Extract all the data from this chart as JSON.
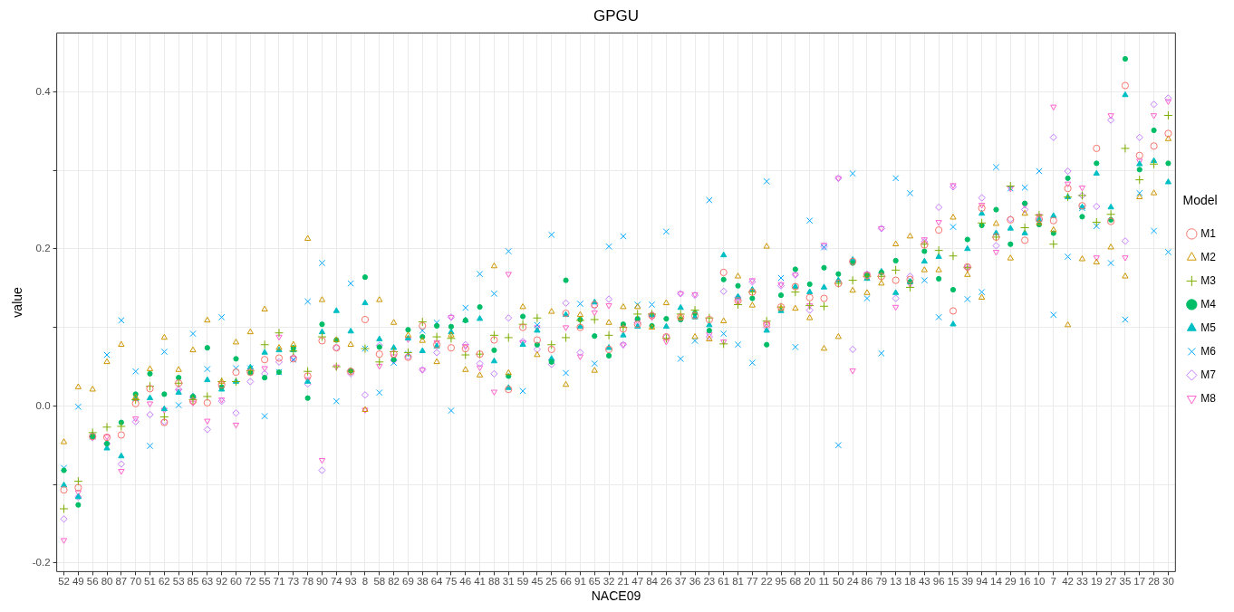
{
  "chart_data": {
    "type": "scatter",
    "title": "GPGU",
    "xlabel": "NACE09",
    "ylabel": "value",
    "legend_title": "Model",
    "legend": "right",
    "grid": true,
    "categories": [
      "52",
      "49",
      "56",
      "80",
      "87",
      "70",
      "51",
      "62",
      "53",
      "85",
      "63",
      "92",
      "60",
      "72",
      "55",
      "71",
      "73",
      "78",
      "90",
      "74",
      "93",
      "8",
      "58",
      "82",
      "69",
      "38",
      "64",
      "75",
      "46",
      "41",
      "88",
      "31",
      "59",
      "45",
      "25",
      "66",
      "91",
      "65",
      "32",
      "21",
      "47",
      "84",
      "26",
      "37",
      "36",
      "23",
      "61",
      "81",
      "77",
      "22",
      "95",
      "68",
      "20",
      "11",
      "50",
      "24",
      "86",
      "79",
      "13",
      "18",
      "43",
      "96",
      "15",
      "39",
      "94",
      "14",
      "29",
      "16",
      "10",
      "7",
      "42",
      "33",
      "19",
      "27",
      "35",
      "17",
      "28",
      "30"
    ],
    "ylim": [
      -0.211,
      0.475
    ],
    "yticks": [
      -0.2,
      {
        "value": -0.1,
        "label": null
      },
      {
        "value": 0,
        "label": "0.0"
      },
      {
        "value": 0.1,
        "label": null
      },
      0.2,
      {
        "value": 0.3,
        "label": null
      },
      0.4
    ],
    "series": [
      {
        "name": "M1",
        "color": "#f8766d",
        "marker": "circle",
        "values": [
          -0.107,
          -0.104,
          -0.039,
          -0.04,
          -0.037,
          0.003,
          0.022,
          -0.021,
          0.029,
          0.006,
          0.004,
          0.027,
          0.043,
          0.043,
          0.059,
          0.061,
          0.06,
          0.038,
          0.083,
          0.074,
          0.044,
          0.11,
          0.066,
          0.066,
          0.062,
          0.102,
          0.078,
          0.074,
          0.073,
          0.066,
          0.084,
          0.021,
          0.1,
          0.084,
          0.072,
          0.118,
          0.1,
          0.129,
          0.072,
          0.098,
          0.104,
          0.115,
          0.088,
          0.113,
          0.115,
          0.11,
          0.17,
          0.134,
          0.145,
          0.104,
          0.126,
          0.152,
          0.138,
          0.137,
          0.156,
          0.184,
          0.166,
          0.165,
          0.16,
          0.161,
          0.205,
          0.224,
          0.121,
          0.177,
          0.252,
          0.215,
          0.237,
          0.211,
          0.238,
          0.236,
          0.277,
          0.255,
          0.328,
          0.235,
          0.408,
          0.319,
          0.331,
          0.347
        ]
      },
      {
        "name": "M2",
        "color": "#cd9600",
        "marker": "triangle",
        "values": [
          -0.046,
          0.024,
          0.021,
          0.056,
          0.078,
          0.011,
          0.047,
          0.087,
          0.046,
          0.071,
          0.109,
          0.031,
          0.081,
          0.094,
          0.123,
          0.074,
          0.078,
          0.213,
          0.135,
          0.084,
          0.078,
          -0.005,
          0.135,
          0.106,
          0.09,
          0.083,
          0.056,
          0.09,
          0.046,
          0.039,
          0.178,
          0.042,
          0.126,
          0.065,
          0.12,
          0.027,
          0.116,
          0.045,
          0.106,
          0.126,
          0.126,
          0.1,
          0.131,
          0.113,
          0.088,
          0.085,
          0.108,
          0.165,
          0.128,
          0.203,
          0.124,
          0.124,
          0.112,
          0.073,
          0.088,
          0.147,
          0.144,
          0.156,
          0.206,
          0.216,
          0.173,
          0.173,
          0.24,
          0.167,
          0.138,
          0.232,
          0.188,
          0.245,
          0.233,
          0.224,
          0.103,
          0.187,
          0.183,
          0.202,
          0.165,
          0.266,
          0.271,
          0.34
        ]
      },
      {
        "name": "M3",
        "color": "#7cae00",
        "marker": "cross",
        "values": [
          -0.131,
          -0.096,
          -0.034,
          -0.027,
          -0.026,
          0.008,
          0.025,
          -0.014,
          0.029,
          0.008,
          0.012,
          0.031,
          0.031,
          0.045,
          0.078,
          0.093,
          0.07,
          0.044,
          0.088,
          0.05,
          0.044,
          0.073,
          0.056,
          0.069,
          0.068,
          0.107,
          0.088,
          0.086,
          0.065,
          0.066,
          0.09,
          0.087,
          0.104,
          0.112,
          0.078,
          0.087,
          0.109,
          0.11,
          0.09,
          0.1,
          0.117,
          0.117,
          0.086,
          0.117,
          0.122,
          0.112,
          0.079,
          0.129,
          0.145,
          0.108,
          0.126,
          0.145,
          0.128,
          0.127,
          0.156,
          0.16,
          0.165,
          0.165,
          0.173,
          0.151,
          0.206,
          0.198,
          0.191,
          0.176,
          0.233,
          0.215,
          0.28,
          0.227,
          0.243,
          0.206,
          0.266,
          0.268,
          0.234,
          0.244,
          0.328,
          0.288,
          0.308,
          0.37
        ]
      },
      {
        "name": "M4",
        "color": "#00be67",
        "marker": "circle-filled",
        "values": [
          -0.082,
          -0.126,
          -0.039,
          -0.048,
          -0.021,
          0.015,
          0.041,
          0.015,
          0.036,
          0.012,
          0.074,
          0.024,
          0.06,
          0.042,
          0.036,
          0.043,
          0.074,
          0.01,
          0.104,
          0.084,
          0.045,
          0.164,
          0.075,
          0.059,
          0.097,
          0.088,
          0.102,
          0.101,
          0.109,
          0.126,
          0.071,
          0.038,
          0.114,
          0.078,
          0.056,
          0.16,
          0.11,
          0.089,
          0.064,
          0.104,
          0.111,
          0.102,
          0.111,
          0.11,
          0.118,
          0.096,
          0.161,
          0.153,
          0.137,
          0.078,
          0.141,
          0.174,
          0.155,
          0.176,
          0.168,
          0.182,
          0.167,
          0.17,
          0.185,
          0.158,
          0.197,
          0.162,
          0.148,
          0.212,
          0.23,
          0.25,
          0.206,
          0.258,
          0.231,
          0.22,
          0.29,
          0.241,
          0.309,
          0.237,
          0.442,
          0.301,
          0.351,
          0.309
        ]
      },
      {
        "name": "M5",
        "color": "#00bfc4",
        "marker": "triangle-filled",
        "values": [
          -0.101,
          -0.116,
          -0.037,
          -0.054,
          -0.064,
          0.009,
          0.01,
          -0.004,
          0.017,
          0.012,
          0.033,
          0.021,
          0.031,
          0.049,
          0.068,
          0.071,
          0.071,
          0.031,
          0.094,
          0.121,
          0.095,
          0.131,
          0.085,
          0.074,
          0.086,
          0.07,
          0.076,
          0.094,
          0.109,
          0.111,
          0.057,
          0.023,
          0.078,
          0.096,
          0.06,
          0.116,
          0.101,
          0.132,
          0.074,
          0.09,
          0.101,
          0.116,
          0.101,
          0.125,
          0.113,
          0.103,
          0.192,
          0.139,
          0.148,
          0.096,
          0.121,
          0.152,
          0.145,
          0.151,
          0.16,
          0.186,
          0.162,
          0.171,
          0.144,
          0.158,
          0.184,
          0.19,
          0.104,
          0.2,
          0.245,
          0.22,
          0.226,
          0.22,
          0.237,
          0.242,
          0.266,
          0.253,
          0.296,
          0.253,
          0.396,
          0.308,
          0.312,
          0.285
        ]
      },
      {
        "name": "M6",
        "color": "#00a9ff",
        "marker": "x",
        "values": [
          -0.079,
          -0.001,
          -0.039,
          0.065,
          0.109,
          0.044,
          -0.051,
          0.069,
          0.001,
          0.092,
          0.047,
          0.113,
          0.048,
          0.048,
          -0.013,
          0.043,
          0.059,
          0.133,
          0.182,
          0.006,
          0.156,
          0.073,
          0.017,
          0.055,
          0.066,
          0.096,
          0.106,
          -0.006,
          0.125,
          0.168,
          0.143,
          0.197,
          0.019,
          0.103,
          0.218,
          0.042,
          0.13,
          0.054,
          0.203,
          0.216,
          0.129,
          0.129,
          0.222,
          0.06,
          0.083,
          0.262,
          0.092,
          0.078,
          0.055,
          0.286,
          0.163,
          0.075,
          0.236,
          0.202,
          -0.05,
          0.296,
          0.137,
          0.067,
          0.29,
          0.271,
          0.16,
          0.113,
          0.228,
          0.136,
          0.145,
          0.304,
          0.277,
          0.278,
          0.299,
          0.116,
          0.19,
          0.252,
          0.229,
          0.182,
          0.11,
          0.271,
          0.223,
          0.196
        ]
      },
      {
        "name": "M7",
        "color": "#c77cff",
        "marker": "diamond",
        "values": [
          -0.144,
          -0.116,
          -0.04,
          -0.048,
          -0.074,
          -0.02,
          -0.011,
          -0.02,
          0.021,
          0.012,
          -0.03,
          0.006,
          -0.009,
          0.031,
          0.041,
          0.056,
          0.062,
          0.028,
          -0.082,
          0.074,
          0.041,
          0.014,
          0.077,
          0.058,
          0.063,
          0.046,
          0.068,
          0.113,
          0.078,
          0.054,
          0.041,
          0.112,
          0.082,
          0.072,
          0.053,
          0.131,
          0.068,
          0.127,
          0.136,
          0.078,
          0.106,
          0.116,
          0.088,
          0.143,
          0.141,
          0.088,
          0.146,
          0.138,
          0.158,
          0.1,
          0.153,
          0.167,
          0.122,
          0.203,
          0.29,
          0.072,
          0.168,
          0.226,
          0.137,
          0.165,
          0.209,
          0.253,
          0.279,
          0.177,
          0.265,
          0.204,
          0.238,
          0.25,
          0.237,
          0.342,
          0.299,
          0.268,
          0.254,
          0.364,
          0.21,
          0.342,
          0.384,
          0.392
        ]
      },
      {
        "name": "M8",
        "color": "#ff61cc",
        "marker": "triangle-down",
        "values": [
          -0.171,
          -0.11,
          -0.04,
          -0.039,
          -0.083,
          -0.016,
          0.003,
          -0.005,
          0.019,
          0.004,
          -0.019,
          0.008,
          -0.024,
          0.045,
          0.048,
          0.088,
          0.061,
          0.034,
          -0.069,
          0.05,
          0.044,
          -0.005,
          0.051,
          0.063,
          0.085,
          0.046,
          0.081,
          0.113,
          0.076,
          0.049,
          0.018,
          0.168,
          0.081,
          0.1,
          0.057,
          0.1,
          0.063,
          0.119,
          0.128,
          0.078,
          0.108,
          0.113,
          0.082,
          0.143,
          0.142,
          0.091,
          0.082,
          0.134,
          0.16,
          0.104,
          0.155,
          0.167,
          0.128,
          0.205,
          0.29,
          0.045,
          0.168,
          0.226,
          0.126,
          0.155,
          0.212,
          0.234,
          0.281,
          0.175,
          0.256,
          0.196,
          0.277,
          0.256,
          0.242,
          0.381,
          0.283,
          0.278,
          0.189,
          0.37,
          0.189,
          0.312,
          0.37,
          0.388
        ]
      }
    ]
  }
}
